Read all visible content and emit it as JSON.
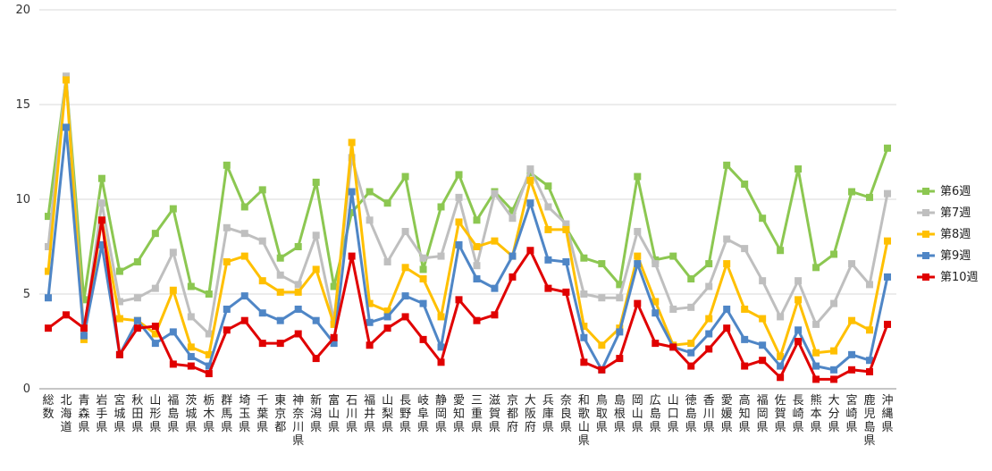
{
  "chart_data": {
    "type": "line",
    "ylim": [
      0,
      20
    ],
    "yticks": [
      "0",
      "5",
      "10",
      "15",
      "20"
    ],
    "grid": true,
    "legend_position": "right",
    "categories": [
      "総数",
      "北海道",
      "青森県",
      "岩手県",
      "宮城県",
      "秋田県",
      "山形県",
      "福島県",
      "茨城県",
      "栃木県",
      "群馬県",
      "埼玉県",
      "千葉県",
      "東京都",
      "神奈川県",
      "新潟県",
      "富山県",
      "石川県",
      "福井県",
      "山梨県",
      "長野県",
      "岐阜県",
      "静岡県",
      "愛知県",
      "三重県",
      "滋賀県",
      "京都府",
      "大阪府",
      "兵庫県",
      "奈良県",
      "和歌山県",
      "鳥取県",
      "島根県",
      "岡山県",
      "広島県",
      "山口県",
      "徳島県",
      "香川県",
      "愛媛県",
      "高知県",
      "福岡県",
      "佐賀県",
      "長崎県",
      "熊本県",
      "大分県",
      "宮崎県",
      "鹿児島県",
      "沖縄県"
    ],
    "series": [
      {
        "name": "第6週",
        "color": "#8cc751",
        "values": [
          9.1,
          16.4,
          4.7,
          11.1,
          6.2,
          6.7,
          8.2,
          9.5,
          5.4,
          5.0,
          11.8,
          9.6,
          10.5,
          6.9,
          7.5,
          10.9,
          5.4,
          9.3,
          10.4,
          9.8,
          11.2,
          6.3,
          9.6,
          11.3,
          8.9,
          10.4,
          9.4,
          11.4,
          10.7,
          8.5,
          6.9,
          6.6,
          5.5,
          11.2,
          6.8,
          7.0,
          5.8,
          6.6,
          11.8,
          10.8,
          9.0,
          7.3,
          11.6,
          6.4,
          7.1,
          10.4,
          10.1,
          12.7
        ]
      },
      {
        "name": "第7週",
        "color": "#bfbfbf",
        "values": [
          7.5,
          16.5,
          3.0,
          9.8,
          4.6,
          4.8,
          5.3,
          7.2,
          3.8,
          2.9,
          8.5,
          8.2,
          7.8,
          6.0,
          5.5,
          8.1,
          3.6,
          12.2,
          8.9,
          6.7,
          8.3,
          6.9,
          7.0,
          10.1,
          6.5,
          10.3,
          9.0,
          11.6,
          9.6,
          8.7,
          5.0,
          4.8,
          4.8,
          8.3,
          6.6,
          4.2,
          4.3,
          5.4,
          7.9,
          7.4,
          5.7,
          3.8,
          5.7,
          3.4,
          4.5,
          6.6,
          5.5,
          10.3
        ]
      },
      {
        "name": "第8週",
        "color": "#ffc000",
        "values": [
          6.2,
          16.3,
          2.6,
          8.9,
          3.7,
          3.6,
          2.9,
          5.2,
          2.2,
          1.8,
          6.7,
          7.0,
          5.7,
          5.1,
          5.1,
          6.3,
          3.4,
          13.0,
          4.5,
          4.1,
          6.4,
          5.8,
          3.8,
          8.8,
          7.5,
          7.8,
          7.0,
          11.0,
          8.4,
          8.4,
          3.3,
          2.3,
          3.2,
          7.0,
          4.6,
          2.3,
          2.4,
          3.7,
          6.6,
          4.2,
          3.7,
          1.7,
          4.7,
          1.9,
          2.0,
          3.6,
          3.1,
          7.8
        ]
      },
      {
        "name": "第9週",
        "color": "#4f86c6",
        "values": [
          4.8,
          13.8,
          2.8,
          7.6,
          1.8,
          3.6,
          2.4,
          3.0,
          1.7,
          1.2,
          4.2,
          4.9,
          4.0,
          3.6,
          4.2,
          3.6,
          2.4,
          10.4,
          3.5,
          3.8,
          4.9,
          4.5,
          2.2,
          7.6,
          5.8,
          5.3,
          7.0,
          9.8,
          6.8,
          6.7,
          2.7,
          1.0,
          3.0,
          6.6,
          4.0,
          2.2,
          1.9,
          2.9,
          4.2,
          2.6,
          2.3,
          1.2,
          3.1,
          1.2,
          1.0,
          1.8,
          1.5,
          5.9
        ]
      },
      {
        "name": "第10週",
        "color": "#e00000",
        "values": [
          3.2,
          3.9,
          3.2,
          8.9,
          1.8,
          3.2,
          3.3,
          1.3,
          1.2,
          0.8,
          3.1,
          3.6,
          2.4,
          2.4,
          2.9,
          1.6,
          2.7,
          7.0,
          2.3,
          3.2,
          3.8,
          2.6,
          1.4,
          4.7,
          3.6,
          3.9,
          5.9,
          7.3,
          5.3,
          5.1,
          1.4,
          1.0,
          1.6,
          4.5,
          2.4,
          2.2,
          1.2,
          2.1,
          3.2,
          1.2,
          1.5,
          0.6,
          2.5,
          0.5,
          0.5,
          1.0,
          0.9,
          3.4
        ]
      }
    ]
  }
}
